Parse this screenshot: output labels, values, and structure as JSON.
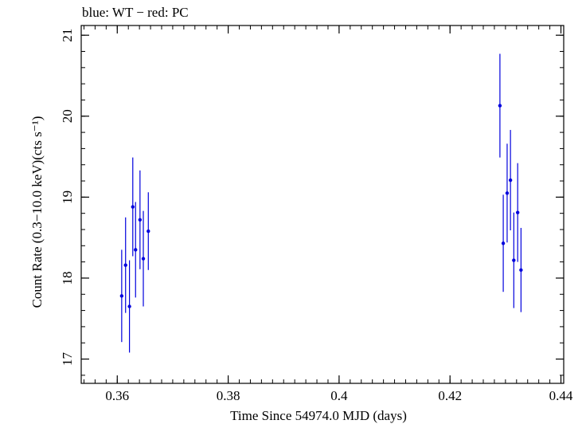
{
  "chart_data": {
    "type": "scatter",
    "title": "blue: WT − red: PC",
    "xlabel": "Time Since 54974.0 MJD (days)",
    "ylabel": "Count Rate (0.3−10.0 keV)(cts s⁻¹)",
    "xlim": [
      0.3535,
      0.4405
    ],
    "ylim": [
      16.7,
      21.12
    ],
    "x_ticks": [
      0.36,
      0.38,
      0.4,
      0.42,
      0.44
    ],
    "x_tick_labels": [
      "0.36",
      "0.38",
      "0.4",
      "0.42",
      "0.44"
    ],
    "y_ticks": [
      17,
      18,
      19,
      20,
      21
    ],
    "y_tick_labels": [
      "17",
      "18",
      "19",
      "20",
      "21"
    ],
    "grid": false,
    "series": [
      {
        "name": "WT",
        "color": "#0000dd",
        "points": [
          {
            "x": 0.3608,
            "y": 17.78,
            "err": 0.57
          },
          {
            "x": 0.3615,
            "y": 18.16,
            "err": 0.59
          },
          {
            "x": 0.3622,
            "y": 17.65,
            "err": 0.57
          },
          {
            "x": 0.3628,
            "y": 18.88,
            "err": 0.61
          },
          {
            "x": 0.3633,
            "y": 18.35,
            "err": 0.59
          },
          {
            "x": 0.3641,
            "y": 18.72,
            "err": 0.61
          },
          {
            "x": 0.3647,
            "y": 18.24,
            "err": 0.59
          },
          {
            "x": 0.3656,
            "y": 18.58,
            "err": 0.48
          },
          {
            "x": 0.429,
            "y": 20.13,
            "err": 0.64
          },
          {
            "x": 0.4296,
            "y": 18.43,
            "err": 0.6
          },
          {
            "x": 0.4303,
            "y": 19.05,
            "err": 0.61
          },
          {
            "x": 0.4309,
            "y": 19.21,
            "err": 0.62
          },
          {
            "x": 0.4315,
            "y": 18.22,
            "err": 0.59
          },
          {
            "x": 0.4322,
            "y": 18.81,
            "err": 0.61
          },
          {
            "x": 0.4328,
            "y": 18.1,
            "err": 0.52
          }
        ]
      },
      {
        "name": "PC",
        "color": "#dd0000",
        "points": []
      }
    ]
  }
}
